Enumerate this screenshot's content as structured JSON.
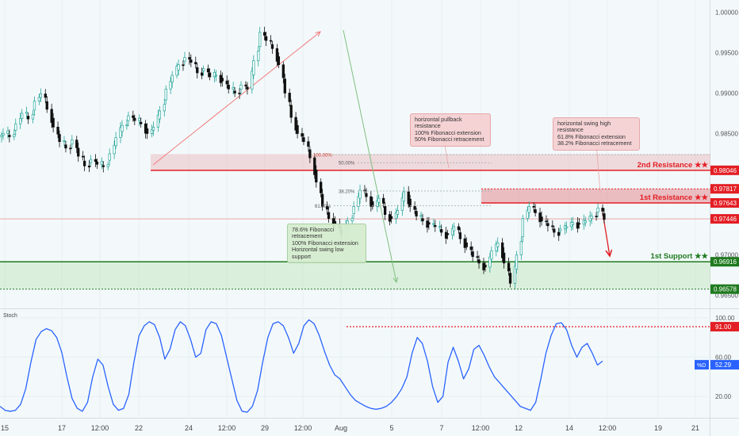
{
  "chart_data": [
    {
      "type": "candlestick",
      "yaxis": {
        "range": [
          0.9635,
          1.0015
        ],
        "ticks": [
          "1.00000",
          "0.99500",
          "0.99000",
          "0.98500",
          "0.97000",
          "0.96500"
        ],
        "tick_values": [
          1.0,
          0.995,
          0.99,
          0.985,
          0.97,
          0.965
        ]
      },
      "price_levels": [
        {
          "name": "2nd Resistance ★★",
          "value": 0.98046,
          "label": "0.98046",
          "color": "#e31e24"
        },
        {
          "name": "",
          "value": 0.97817,
          "label": "0.97817",
          "color": "#e31e24"
        },
        {
          "name": "1st Resistance ★★",
          "value": 0.97643,
          "label": "0.97643",
          "color": "#e31e24"
        },
        {
          "name": "",
          "value": 0.97446,
          "label": "0.97446",
          "color": "#e31e24"
        },
        {
          "name": "1st Support ★★",
          "value": 0.96916,
          "label": "0.96916",
          "color": "#1e7a1e"
        },
        {
          "name": "",
          "value": 0.96578,
          "label": "0.96578",
          "color": "#1e7a1e"
        }
      ],
      "fib_labels": [
        {
          "label": "100.00%",
          "value": 0.9824
        },
        {
          "label": "50.00%",
          "value": 0.9814
        },
        {
          "label": "38.20%",
          "value": 0.9779
        },
        {
          "label": "61.80%",
          "value": 0.9761
        }
      ],
      "annotations": [
        {
          "id": "pullback",
          "text": "horizontal pullback resistance\n100% Fibonacci extension\n50% Fibonacci retracement"
        },
        {
          "id": "swing-high",
          "text": "horizontal swing high resistance\n61.8% Fibonacci extension\n38.2% Fibonacci retracement"
        },
        {
          "id": "support",
          "text": "78.6% Fibonacci retracement\n100% Fibonacci extension\nHorizontal swing low support"
        }
      ],
      "close_series": [
        0.985,
        0.9846,
        0.9862,
        0.9875,
        0.9868,
        0.989,
        0.9899,
        0.988,
        0.9858,
        0.984,
        0.9832,
        0.9842,
        0.9822,
        0.981,
        0.9818,
        0.9812,
        0.9809,
        0.9825,
        0.9845,
        0.986,
        0.9872,
        0.9866,
        0.9862,
        0.985,
        0.9858,
        0.9878,
        0.9905,
        0.9922,
        0.9935,
        0.9944,
        0.9938,
        0.9925,
        0.993,
        0.992,
        0.9922,
        0.9915,
        0.9905,
        0.99,
        0.991,
        0.9905,
        0.994,
        0.9975,
        0.9965,
        0.9955,
        0.9935,
        0.99,
        0.987,
        0.985,
        0.984,
        0.982,
        0.979,
        0.976,
        0.9745,
        0.9738,
        0.9725,
        0.9742,
        0.976,
        0.978,
        0.9772,
        0.976,
        0.977,
        0.975,
        0.9745,
        0.9755,
        0.9778,
        0.976,
        0.9748,
        0.9742,
        0.9738,
        0.9735,
        0.9728,
        0.9725,
        0.9735,
        0.972,
        0.971,
        0.9698,
        0.969,
        0.9685,
        0.9705,
        0.9715,
        0.969,
        0.9665,
        0.97,
        0.9745,
        0.976,
        0.9752,
        0.9742,
        0.9736,
        0.9728,
        0.9732,
        0.9735,
        0.974,
        0.9738,
        0.9742,
        0.9748,
        0.9758,
        0.9744
      ]
    },
    {
      "type": "line",
      "title": "Stoch",
      "yaxis": {
        "range": [
          0,
          108
        ],
        "ticks": [
          "100.00",
          "60.00",
          "20.00"
        ],
        "tick_values": [
          100,
          60,
          20
        ]
      },
      "levels": [
        {
          "value": 91.0,
          "label": "91.00",
          "color": "#e31e24"
        }
      ],
      "current": {
        "label": "%D",
        "value": 52.29,
        "display": "52.29",
        "color": "#2962ff"
      },
      "series": [
        {
          "values": [
            10,
            6,
            5,
            6,
            12,
            28,
            55,
            78,
            86,
            89,
            87,
            80,
            65,
            40,
            18,
            8,
            5,
            14,
            40,
            58,
            52,
            30,
            12,
            6,
            8,
            22,
            55,
            82,
            92,
            96,
            93,
            80,
            58,
            68,
            88,
            96,
            92,
            78,
            60,
            64,
            88,
            96,
            94,
            82,
            60,
            38,
            16,
            5,
            4,
            10,
            26,
            55,
            80,
            94,
            96,
            92,
            80,
            64,
            74,
            92,
            98,
            94,
            82,
            66,
            52,
            42,
            38,
            30,
            22,
            16,
            13,
            10,
            8,
            7,
            8,
            10,
            14,
            20,
            28,
            40,
            64,
            80,
            74,
            56,
            30,
            14,
            20,
            55,
            70,
            56,
            38,
            48,
            68,
            72,
            62,
            50,
            40,
            34,
            28,
            22,
            16,
            10,
            8,
            6,
            14,
            38,
            64,
            82,
            94,
            95,
            88,
            72,
            60,
            70,
            74,
            64,
            52,
            56
          ]
        }
      ]
    },
    {
      "type": "axis",
      "x_ticks": [
        "15",
        "17",
        "12:00",
        "22",
        "24",
        "12:00",
        "29",
        "12:00",
        "Aug",
        "5",
        "7",
        "12:00",
        "12",
        "14",
        "12:00",
        "19",
        "21"
      ]
    }
  ]
}
